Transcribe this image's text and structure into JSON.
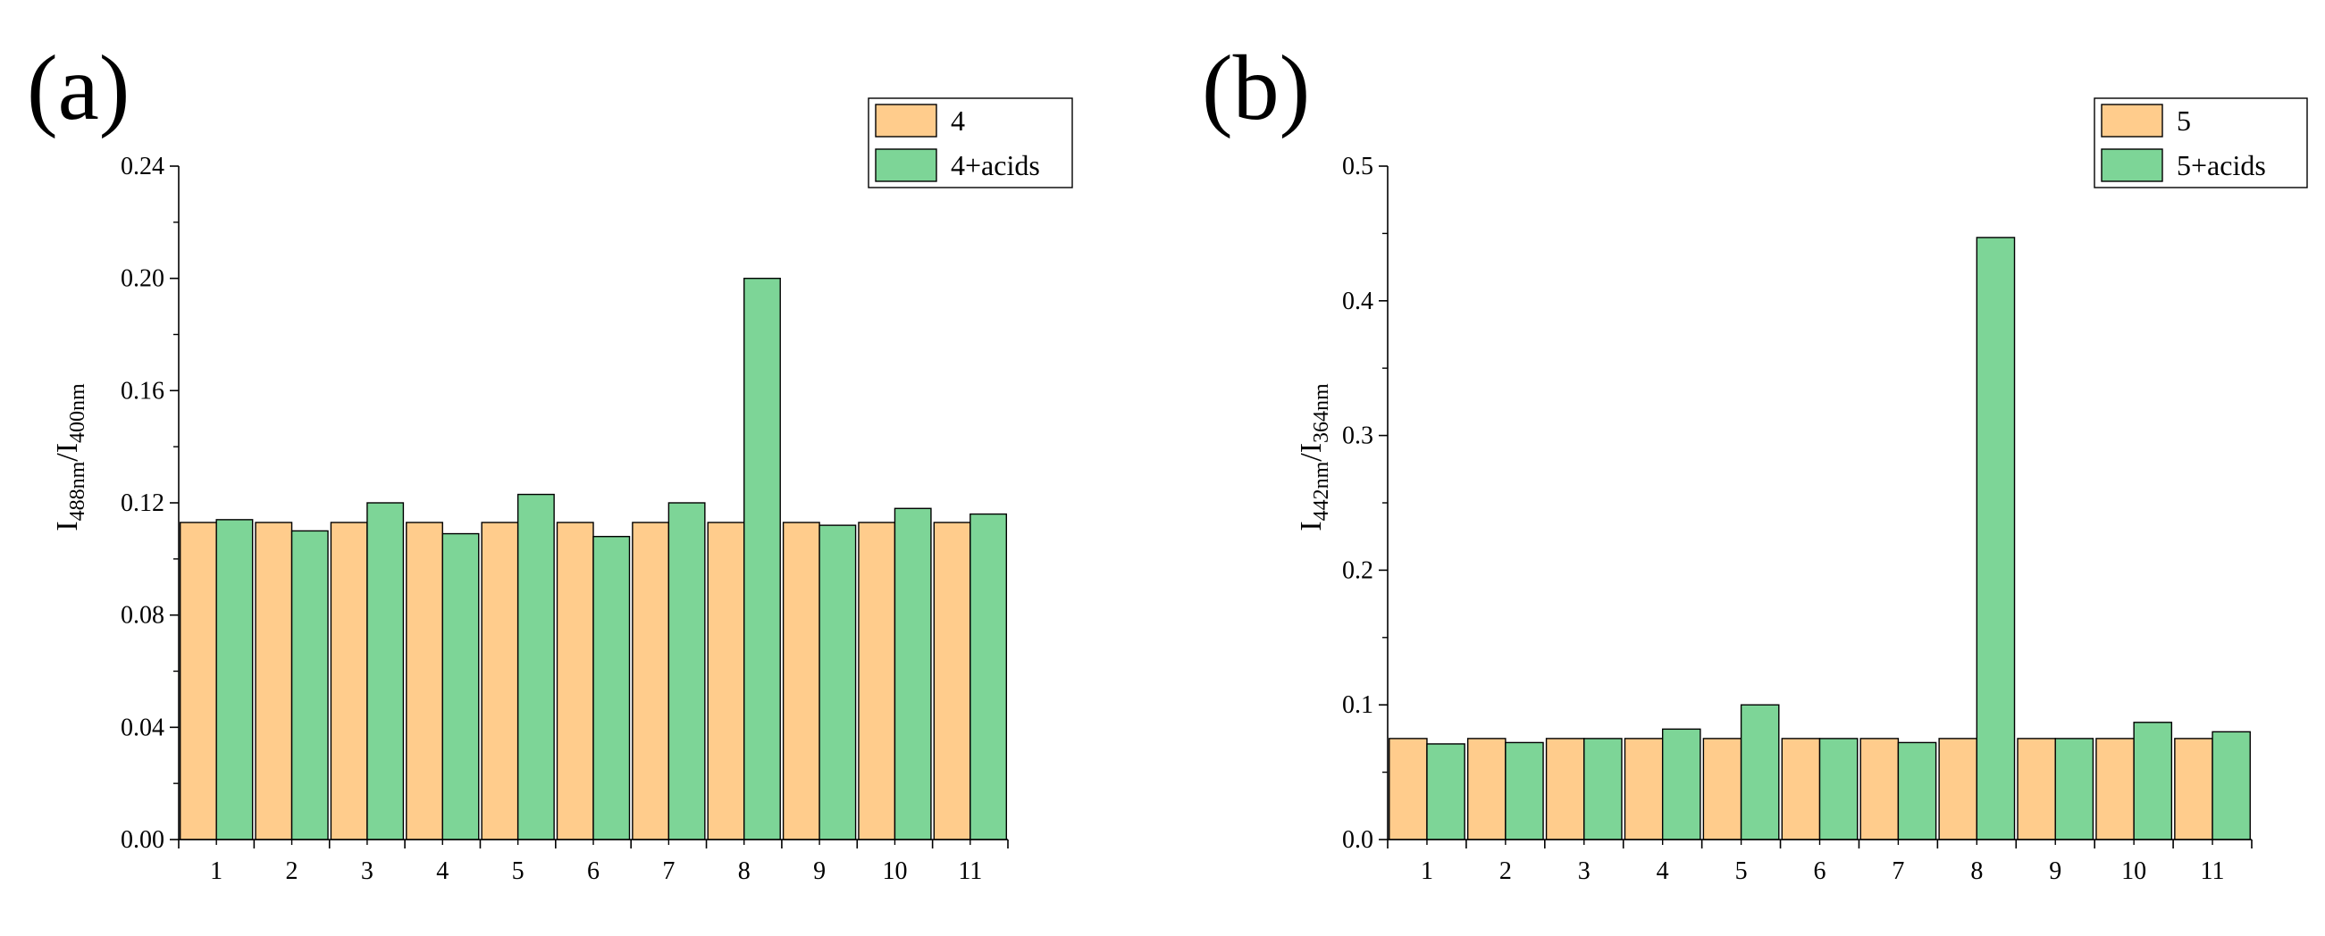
{
  "chart_data": [
    {
      "type": "bar",
      "panel_label": "(a)",
      "title": "",
      "xlabel": "",
      "ylabel": {
        "main1": "I",
        "sub1": "488nm",
        "slash": "/I",
        "sub2": "400nm"
      },
      "categories": [
        "1",
        "2",
        "3",
        "4",
        "5",
        "6",
        "7",
        "8",
        "9",
        "10",
        "11"
      ],
      "ylim": [
        0,
        0.24
      ],
      "yticks": [
        "0.00",
        "0.04",
        "0.08",
        "0.12",
        "0.16",
        "0.20",
        "0.24"
      ],
      "legend_position": "top-right",
      "series": [
        {
          "name": "4",
          "color": "#FFCC8C",
          "values": [
            0.113,
            0.113,
            0.113,
            0.113,
            0.113,
            0.113,
            0.113,
            0.113,
            0.113,
            0.113,
            0.113
          ]
        },
        {
          "name": "4+acids",
          "color": "#7DD597",
          "values": [
            0.114,
            0.11,
            0.12,
            0.109,
            0.123,
            0.108,
            0.12,
            0.2,
            0.112,
            0.118,
            0.116
          ]
        }
      ]
    },
    {
      "type": "bar",
      "panel_label": "(b)",
      "title": "",
      "xlabel": "",
      "ylabel": {
        "main1": "I",
        "sub1": "442nm",
        "slash": "/I",
        "sub2": "364nm"
      },
      "categories": [
        "1",
        "2",
        "3",
        "4",
        "5",
        "6",
        "7",
        "8",
        "9",
        "10",
        "11"
      ],
      "ylim": [
        0,
        0.5
      ],
      "yticks": [
        "0.0",
        "0.1",
        "0.2",
        "0.3",
        "0.4",
        "0.5"
      ],
      "legend_position": "top-right",
      "series": [
        {
          "name": "5",
          "color": "#FFCC8C",
          "values": [
            0.075,
            0.075,
            0.075,
            0.075,
            0.075,
            0.075,
            0.075,
            0.075,
            0.075,
            0.075,
            0.075
          ]
        },
        {
          "name": "5+acids",
          "color": "#7DD597",
          "values": [
            0.071,
            0.072,
            0.075,
            0.082,
            0.1,
            0.075,
            0.072,
            0.447,
            0.075,
            0.087,
            0.08
          ]
        }
      ]
    }
  ]
}
